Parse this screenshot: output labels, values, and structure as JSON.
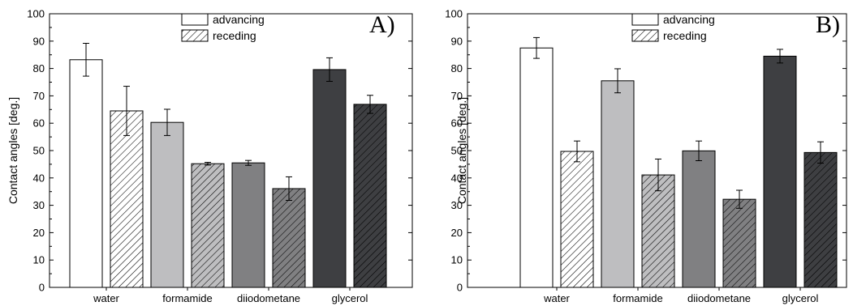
{
  "chart_data": [
    {
      "type": "bar",
      "panel_label": "A)",
      "ylabel": "Contact angles [deg.]",
      "ylim": [
        0,
        100
      ],
      "yticks": [
        0,
        10,
        20,
        30,
        40,
        50,
        60,
        70,
        80,
        90,
        100
      ],
      "categories": [
        "water",
        "formamide",
        "diiodometane",
        "glycerol"
      ],
      "series": [
        {
          "name": "advancing",
          "values": [
            83.2,
            60.3,
            45.5,
            79.6
          ],
          "errors": [
            6.0,
            4.8,
            0.9,
            4.3
          ]
        },
        {
          "name": "receding",
          "values": [
            64.5,
            45.2,
            36.1,
            66.9
          ],
          "errors": [
            9.0,
            0.5,
            4.3,
            3.3
          ]
        }
      ],
      "legend": "top-right",
      "grid": false
    },
    {
      "type": "bar",
      "panel_label": "B)",
      "ylabel": "Contact angles [deg.]",
      "ylim": [
        0,
        100
      ],
      "yticks": [
        0,
        10,
        20,
        30,
        40,
        50,
        60,
        70,
        80,
        90,
        100
      ],
      "categories": [
        "water",
        "formamide",
        "diiodometane",
        "glycerol"
      ],
      "series": [
        {
          "name": "advancing",
          "values": [
            87.5,
            75.5,
            49.9,
            84.5
          ],
          "errors": [
            3.8,
            4.4,
            3.6,
            2.5
          ]
        },
        {
          "name": "receding",
          "values": [
            49.7,
            41.1,
            32.2,
            49.3
          ],
          "errors": [
            3.8,
            5.8,
            3.3,
            3.9
          ]
        }
      ],
      "legend": "top-right",
      "grid": false
    }
  ],
  "colors": {
    "water": "#ffffff",
    "formamide": "#bebec0",
    "diiodometane": "#808082",
    "glycerol": "#3e3f42",
    "stroke": "#000000"
  }
}
